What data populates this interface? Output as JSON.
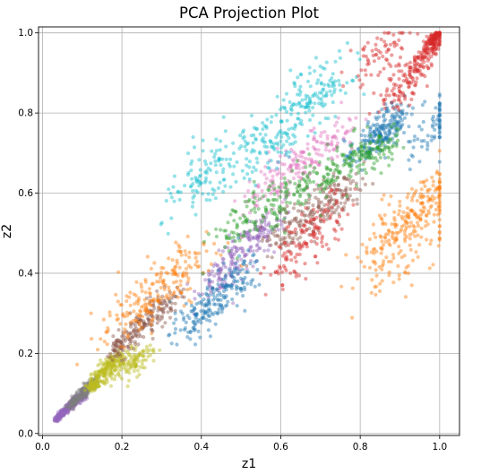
{
  "chart_data": {
    "type": "scatter",
    "title": "PCA Projection Plot",
    "xlabel": "z1",
    "ylabel": "z2",
    "xlim": [
      -0.01,
      1.05
    ],
    "ylim": [
      -0.005,
      1.015
    ],
    "xticks": [
      0.0,
      0.2,
      0.4,
      0.6,
      0.8,
      1.0
    ],
    "yticks": [
      0.0,
      0.2,
      0.4,
      0.6,
      0.8,
      1.0
    ],
    "xtick_labels": [
      "0.0",
      "0.2",
      "0.4",
      "0.6",
      "0.8",
      "1.0"
    ],
    "ytick_labels": [
      "0.0",
      "0.2",
      "0.4",
      "0.6",
      "0.8",
      "1.0"
    ],
    "grid": true,
    "marker_alpha": 0.45,
    "series": [
      {
        "color": "#9467bd",
        "x": [
          0.04,
          0.05,
          0.06,
          0.07,
          0.08,
          0.1,
          0.45,
          0.5,
          0.55
        ],
        "y": [
          0.04,
          0.05,
          0.06,
          0.07,
          0.08,
          0.09,
          0.4,
          0.45,
          0.5
        ],
        "spread": [
          0.005,
          0.005,
          0.006,
          0.006,
          0.007,
          0.008,
          0.03,
          0.035,
          0.03
        ]
      },
      {
        "color": "#7f7f7f",
        "x": [
          0.08,
          0.1,
          0.12
        ],
        "y": [
          0.08,
          0.1,
          0.12
        ],
        "spread": [
          0.008,
          0.01,
          0.01
        ]
      },
      {
        "color": "#bcbd22",
        "x": [
          0.13,
          0.15,
          0.17,
          0.2,
          0.24
        ],
        "y": [
          0.12,
          0.15,
          0.17,
          0.18,
          0.18
        ],
        "spread": [
          0.01,
          0.015,
          0.015,
          0.02,
          0.02
        ]
      },
      {
        "color": "#8c564b",
        "x": [
          0.2,
          0.25,
          0.3,
          0.62,
          0.68,
          0.74
        ],
        "y": [
          0.22,
          0.27,
          0.31,
          0.52,
          0.55,
          0.58
        ],
        "spread": [
          0.02,
          0.025,
          0.025,
          0.04,
          0.04,
          0.035
        ]
      },
      {
        "color": "#ff7f0e",
        "x": [
          0.22,
          0.3,
          0.36,
          0.88,
          0.93,
          0.97,
          0.9
        ],
        "y": [
          0.3,
          0.36,
          0.42,
          0.5,
          0.55,
          0.58,
          0.44
        ],
        "spread": [
          0.04,
          0.05,
          0.05,
          0.05,
          0.05,
          0.04,
          0.06
        ]
      },
      {
        "color": "#1f77b4",
        "x": [
          0.38,
          0.43,
          0.48,
          0.82,
          0.86,
          0.88,
          0.98
        ],
        "y": [
          0.28,
          0.33,
          0.38,
          0.72,
          0.76,
          0.78,
          0.76
        ],
        "spread": [
          0.03,
          0.035,
          0.035,
          0.03,
          0.03,
          0.03,
          0.04
        ]
      },
      {
        "color": "#e377c2",
        "x": [
          0.58,
          0.65,
          0.72
        ],
        "y": [
          0.62,
          0.68,
          0.72
        ],
        "spread": [
          0.04,
          0.04,
          0.04
        ]
      },
      {
        "color": "#17becf",
        "x": [
          0.4,
          0.48,
          0.58,
          0.65,
          0.7
        ],
        "y": [
          0.62,
          0.68,
          0.74,
          0.82,
          0.85
        ],
        "spread": [
          0.05,
          0.06,
          0.05,
          0.05,
          0.04
        ]
      },
      {
        "color": "#2ca02c",
        "x": [
          0.5,
          0.6,
          0.7,
          0.78,
          0.84
        ],
        "y": [
          0.52,
          0.58,
          0.64,
          0.68,
          0.7
        ],
        "spread": [
          0.04,
          0.04,
          0.04,
          0.035,
          0.03
        ]
      },
      {
        "color": "#d62728",
        "x": [
          0.64,
          0.7,
          0.9,
          0.95,
          0.98,
          0.99,
          0.85
        ],
        "y": [
          0.45,
          0.52,
          0.86,
          0.92,
          0.97,
          0.99,
          0.95
        ],
        "spread": [
          0.04,
          0.04,
          0.03,
          0.02,
          0.015,
          0.01,
          0.04
        ]
      }
    ]
  }
}
